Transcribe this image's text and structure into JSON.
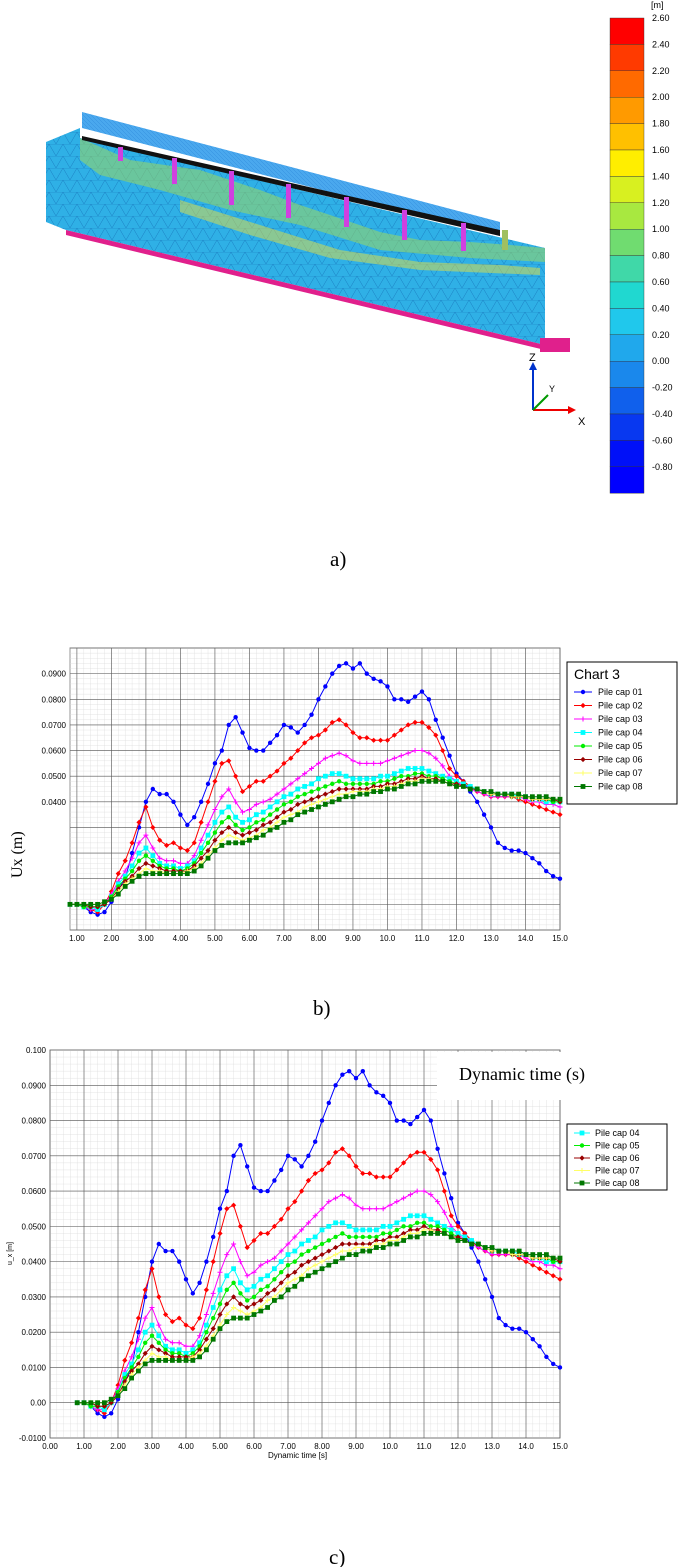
{
  "panel_a": {
    "label": "a)",
    "legend_unit": "[m]",
    "legend_ticks": [
      "2.60",
      "2.40",
      "2.20",
      "2.00",
      "1.80",
      "1.60",
      "1.40",
      "1.20",
      "1.00",
      "0.80",
      "0.60",
      "0.40",
      "0.20",
      "0.00",
      "-0.20",
      "-0.40",
      "-0.60",
      "-0.80"
    ],
    "legend_colors": [
      "#ff0000",
      "#ff3a00",
      "#ff6a00",
      "#ff9a00",
      "#ffc000",
      "#ffee00",
      "#d8f020",
      "#a8e840",
      "#70dc70",
      "#40d8a8",
      "#20d8d0",
      "#20c8ec",
      "#20a8ec",
      "#1a88ec",
      "#1060ec",
      "#0838f0",
      "#0010f8",
      "#0000ff"
    ],
    "axes": {
      "z": "Z",
      "y": "Y",
      "x": "X"
    },
    "icons": [
      "finite-element-model-image",
      "axis-triad-icon"
    ]
  },
  "panel_b": {
    "label": "b)",
    "ylabel": "Ux (m)",
    "legend_title": "Chart 3"
  },
  "panel_c": {
    "label": "c)",
    "ylabel": "u_x [m]",
    "xlabel": "Dynamic time [s]",
    "overlay_text": "Dynamic time (s)"
  },
  "chart_data": [
    {
      "type": "line",
      "title": "Chart 3",
      "xlabel": "",
      "ylabel": "Ux (m)",
      "xlim": [
        0.8,
        15.0
      ],
      "ylim": [
        -0.01,
        0.1
      ],
      "x_ticks": [
        "1.00",
        "2.00",
        "3.00",
        "4.00",
        "5.00",
        "6.00",
        "7.00",
        "8.00",
        "9.00",
        "10.0",
        "11.0",
        "12.0",
        "13.0",
        "14.0",
        "15.0"
      ],
      "y_ticks": [
        "0.0400",
        "0.0500",
        "0.0600",
        "0.0700",
        "0.0800",
        "0.0900"
      ],
      "grid": true,
      "legend": "right",
      "x": [
        0.8,
        1.0,
        1.2,
        1.4,
        1.6,
        1.8,
        2.0,
        2.2,
        2.4,
        2.6,
        2.8,
        3.0,
        3.2,
        3.4,
        3.6,
        3.8,
        4.0,
        4.2,
        4.4,
        4.6,
        4.8,
        5.0,
        5.2,
        5.4,
        5.6,
        5.8,
        6.0,
        6.2,
        6.4,
        6.6,
        6.8,
        7.0,
        7.2,
        7.4,
        7.6,
        7.8,
        8.0,
        8.2,
        8.4,
        8.6,
        8.8,
        9.0,
        9.2,
        9.4,
        9.6,
        9.8,
        10.0,
        10.2,
        10.4,
        10.6,
        10.8,
        11.0,
        11.2,
        11.4,
        11.6,
        11.8,
        12.0,
        12.2,
        12.4,
        12.6,
        12.8,
        13.0,
        13.2,
        13.4,
        13.6,
        13.8,
        14.0,
        14.2,
        14.4,
        14.6,
        14.8,
        15.0
      ],
      "series": [
        {
          "name": "Pile cap 01",
          "color": "#0000ff",
          "marker": "circle",
          "values": [
            0.0,
            0.0,
            -0.001,
            -0.003,
            -0.004,
            -0.003,
            0.001,
            0.006,
            0.01,
            0.02,
            0.03,
            0.04,
            0.045,
            0.043,
            0.043,
            0.04,
            0.035,
            0.031,
            0.034,
            0.04,
            0.047,
            0.055,
            0.06,
            0.07,
            0.073,
            0.067,
            0.061,
            0.06,
            0.06,
            0.063,
            0.066,
            0.07,
            0.069,
            0.067,
            0.07,
            0.074,
            0.08,
            0.085,
            0.09,
            0.093,
            0.094,
            0.092,
            0.094,
            0.09,
            0.088,
            0.087,
            0.085,
            0.08,
            0.08,
            0.079,
            0.081,
            0.083,
            0.08,
            0.072,
            0.065,
            0.058,
            0.051,
            0.048,
            0.044,
            0.04,
            0.035,
            0.03,
            0.024,
            0.022,
            0.021,
            0.021,
            0.02,
            0.018,
            0.016,
            0.013,
            0.011,
            0.01
          ]
        },
        {
          "name": "Pile cap 02",
          "color": "#ff0000",
          "marker": "diamond",
          "values": [
            0.0,
            0.0,
            -0.001,
            -0.002,
            -0.003,
            0.0,
            0.005,
            0.012,
            0.017,
            0.024,
            0.032,
            0.038,
            0.03,
            0.025,
            0.023,
            0.024,
            0.022,
            0.021,
            0.024,
            0.032,
            0.04,
            0.048,
            0.055,
            0.056,
            0.05,
            0.044,
            0.046,
            0.048,
            0.048,
            0.05,
            0.052,
            0.055,
            0.057,
            0.06,
            0.063,
            0.065,
            0.066,
            0.068,
            0.071,
            0.072,
            0.07,
            0.067,
            0.065,
            0.065,
            0.064,
            0.064,
            0.064,
            0.066,
            0.068,
            0.07,
            0.071,
            0.071,
            0.069,
            0.066,
            0.06,
            0.053,
            0.05,
            0.048,
            0.046,
            0.044,
            0.043,
            0.042,
            0.042,
            0.042,
            0.042,
            0.041,
            0.04,
            0.039,
            0.038,
            0.037,
            0.036,
            0.035
          ]
        },
        {
          "name": "Pile cap 03",
          "color": "#ff00ff",
          "marker": "plus",
          "values": [
            0.0,
            0.0,
            -0.001,
            -0.002,
            -0.002,
            0.0,
            0.004,
            0.009,
            0.013,
            0.018,
            0.024,
            0.027,
            0.022,
            0.018,
            0.017,
            0.017,
            0.016,
            0.016,
            0.019,
            0.025,
            0.031,
            0.037,
            0.042,
            0.045,
            0.04,
            0.036,
            0.037,
            0.039,
            0.04,
            0.041,
            0.043,
            0.045,
            0.047,
            0.049,
            0.051,
            0.053,
            0.055,
            0.057,
            0.058,
            0.059,
            0.058,
            0.056,
            0.055,
            0.055,
            0.055,
            0.055,
            0.056,
            0.057,
            0.058,
            0.059,
            0.06,
            0.06,
            0.059,
            0.057,
            0.054,
            0.05,
            0.048,
            0.046,
            0.045,
            0.044,
            0.043,
            0.042,
            0.042,
            0.042,
            0.042,
            0.042,
            0.041,
            0.04,
            0.04,
            0.039,
            0.039,
            0.038
          ]
        },
        {
          "name": "Pile cap 04",
          "color": "#00ffff",
          "marker": "square",
          "values": [
            0.0,
            0.0,
            -0.001,
            -0.001,
            -0.002,
            0.0,
            0.003,
            0.008,
            0.011,
            0.015,
            0.02,
            0.022,
            0.019,
            0.016,
            0.015,
            0.015,
            0.014,
            0.015,
            0.017,
            0.022,
            0.027,
            0.032,
            0.036,
            0.038,
            0.034,
            0.032,
            0.033,
            0.035,
            0.036,
            0.038,
            0.04,
            0.042,
            0.043,
            0.045,
            0.046,
            0.047,
            0.049,
            0.05,
            0.051,
            0.051,
            0.05,
            0.049,
            0.049,
            0.049,
            0.049,
            0.05,
            0.05,
            0.051,
            0.052,
            0.053,
            0.053,
            0.053,
            0.052,
            0.051,
            0.05,
            0.049,
            0.048,
            0.047,
            0.046,
            0.045,
            0.044,
            0.043,
            0.043,
            0.043,
            0.043,
            0.042,
            0.042,
            0.041,
            0.041,
            0.04,
            0.04,
            0.04
          ]
        },
        {
          "name": "Pile cap 05",
          "color": "#00ee00",
          "marker": "circle",
          "values": [
            0.0,
            0.0,
            -0.001,
            -0.001,
            -0.001,
            0.0,
            0.003,
            0.007,
            0.01,
            0.013,
            0.017,
            0.019,
            0.017,
            0.015,
            0.014,
            0.014,
            0.013,
            0.014,
            0.016,
            0.02,
            0.024,
            0.028,
            0.032,
            0.034,
            0.031,
            0.029,
            0.03,
            0.032,
            0.033,
            0.035,
            0.037,
            0.039,
            0.04,
            0.042,
            0.043,
            0.044,
            0.045,
            0.046,
            0.047,
            0.048,
            0.047,
            0.047,
            0.047,
            0.047,
            0.047,
            0.048,
            0.048,
            0.049,
            0.05,
            0.05,
            0.051,
            0.051,
            0.05,
            0.05,
            0.049,
            0.048,
            0.047,
            0.046,
            0.045,
            0.045,
            0.044,
            0.043,
            0.043,
            0.043,
            0.042,
            0.042,
            0.042,
            0.041,
            0.041,
            0.041,
            0.04,
            0.04
          ]
        },
        {
          "name": "Pile cap 06",
          "color": "#990000",
          "marker": "diamond",
          "values": [
            0.0,
            0.0,
            0.0,
            -0.001,
            -0.001,
            0.0,
            0.002,
            0.006,
            0.009,
            0.011,
            0.014,
            0.016,
            0.015,
            0.014,
            0.013,
            0.013,
            0.013,
            0.013,
            0.015,
            0.018,
            0.021,
            0.025,
            0.028,
            0.03,
            0.028,
            0.027,
            0.028,
            0.029,
            0.031,
            0.032,
            0.034,
            0.036,
            0.037,
            0.039,
            0.04,
            0.041,
            0.042,
            0.043,
            0.044,
            0.045,
            0.045,
            0.045,
            0.045,
            0.045,
            0.046,
            0.046,
            0.047,
            0.047,
            0.048,
            0.049,
            0.049,
            0.05,
            0.049,
            0.049,
            0.048,
            0.047,
            0.047,
            0.046,
            0.045,
            0.045,
            0.044,
            0.043,
            0.043,
            0.043,
            0.042,
            0.042,
            0.042,
            0.041,
            0.041,
            0.041,
            0.041,
            0.04
          ]
        },
        {
          "name": "Pile cap 07",
          "color": "#ffff66",
          "marker": "plus",
          "values": [
            0.0,
            0.0,
            0.0,
            0.0,
            0.0,
            0.001,
            0.002,
            0.005,
            0.008,
            0.01,
            0.012,
            0.014,
            0.013,
            0.013,
            0.012,
            0.012,
            0.012,
            0.013,
            0.014,
            0.016,
            0.019,
            0.022,
            0.025,
            0.027,
            0.026,
            0.025,
            0.026,
            0.027,
            0.029,
            0.03,
            0.032,
            0.034,
            0.035,
            0.036,
            0.038,
            0.039,
            0.04,
            0.041,
            0.042,
            0.043,
            0.043,
            0.044,
            0.044,
            0.044,
            0.045,
            0.045,
            0.046,
            0.046,
            0.047,
            0.048,
            0.048,
            0.049,
            0.049,
            0.048,
            0.048,
            0.047,
            0.046,
            0.046,
            0.045,
            0.045,
            0.044,
            0.043,
            0.043,
            0.043,
            0.042,
            0.042,
            0.042,
            0.041,
            0.041,
            0.041,
            0.041,
            0.041
          ]
        },
        {
          "name": "Pile cap 08",
          "color": "#007700",
          "marker": "square",
          "values": [
            0.0,
            0.0,
            0.0,
            0.0,
            0.0,
            0.001,
            0.002,
            0.004,
            0.007,
            0.009,
            0.011,
            0.012,
            0.012,
            0.012,
            0.012,
            0.012,
            0.012,
            0.012,
            0.013,
            0.015,
            0.018,
            0.021,
            0.023,
            0.024,
            0.024,
            0.024,
            0.025,
            0.026,
            0.027,
            0.029,
            0.03,
            0.032,
            0.033,
            0.035,
            0.036,
            0.037,
            0.038,
            0.039,
            0.04,
            0.041,
            0.042,
            0.042,
            0.043,
            0.043,
            0.044,
            0.044,
            0.045,
            0.045,
            0.046,
            0.047,
            0.047,
            0.048,
            0.048,
            0.048,
            0.048,
            0.047,
            0.046,
            0.046,
            0.045,
            0.045,
            0.044,
            0.044,
            0.043,
            0.043,
            0.043,
            0.043,
            0.042,
            0.042,
            0.042,
            0.042,
            0.041,
            0.041
          ]
        }
      ]
    },
    {
      "type": "line",
      "title": "",
      "xlabel": "Dynamic time [s]",
      "ylabel": "u_x [m]",
      "xlim": [
        0.0,
        15.0
      ],
      "ylim": [
        -0.01,
        0.1
      ],
      "x_ticks": [
        "0.00",
        "1.00",
        "2.00",
        "3.00",
        "4.00",
        "5.00",
        "6.00",
        "7.00",
        "8.00",
        "9.00",
        "10.0",
        "11.0",
        "12.0",
        "13.0",
        "14.0",
        "15.0"
      ],
      "y_ticks": [
        "-0.0100",
        "0.00",
        "0.0100",
        "0.0200",
        "0.0300",
        "0.0400",
        "0.0500",
        "0.0600",
        "0.0700",
        "0.0800",
        "0.0900",
        "0.100"
      ],
      "grid": true,
      "legend": "right",
      "legend_visible_entries": [
        "Pile cap 04",
        "Pile cap 05",
        "Pile cap 06",
        "Pile cap 07",
        "Pile cap 08"
      ],
      "same_series_as_first_chart": true
    }
  ]
}
